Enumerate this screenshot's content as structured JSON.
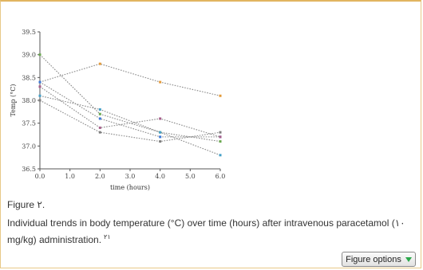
{
  "chart_data": {
    "type": "line",
    "xlabel": "time (hours)",
    "ylabel": "Temp (°C)",
    "xlim": [
      0,
      6
    ],
    "ylim": [
      36.5,
      39.5
    ],
    "x_ticks": [
      "0.0",
      "1.0",
      "2.0",
      "3.0",
      "4.0",
      "5.0",
      "6.0"
    ],
    "y_ticks": [
      "36.5",
      "37.0",
      "37.5",
      "38.0",
      "38.5",
      "39.0",
      "39.5"
    ],
    "x": [
      0,
      2,
      4,
      6
    ],
    "grid": false,
    "line_style": "dotted",
    "series": [
      {
        "values": [
          38.4,
          38.8,
          38.4,
          38.1
        ],
        "color": "#e39a3a"
      },
      {
        "values": [
          39.0,
          37.7,
          37.3,
          37.1
        ],
        "color": "#6aa84f"
      },
      {
        "values": [
          38.4,
          37.6,
          37.2,
          37.2
        ],
        "color": "#3c78d8"
      },
      {
        "values": [
          38.3,
          37.4,
          37.6,
          37.2
        ],
        "color": "#a65e8a"
      },
      {
        "values": [
          38.1,
          37.8,
          37.3,
          36.8
        ],
        "color": "#45a0c8"
      },
      {
        "values": [
          38.0,
          37.3,
          37.1,
          37.3
        ],
        "color": "#7f7f7f"
      }
    ]
  },
  "caption": {
    "figure_label": "Figure ٢.",
    "text": "Individual trends in body temperature (°C) over time (hours) after intravenous paracetamol (١٠ mg/kg) administration.",
    "ref": "٢١"
  },
  "figure_options": {
    "label": "Figure options"
  },
  "colors": {
    "frame_border": "#e8c987",
    "button_arrow": "#2aa84a"
  }
}
